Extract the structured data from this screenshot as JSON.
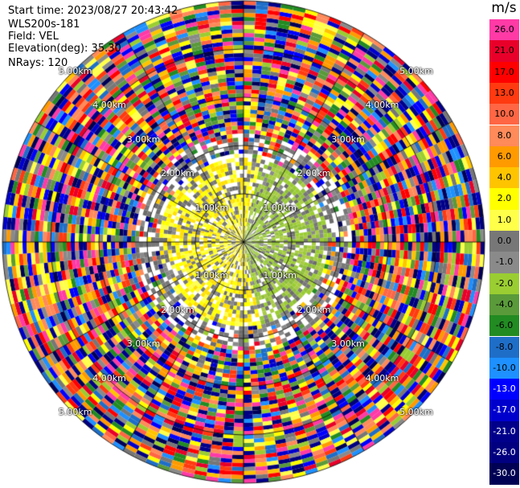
{
  "header": {
    "start_time": "Start time: 2023/08/27 20:43:42",
    "instrument": "WLS200s-181",
    "field": "Field: VEL",
    "elevation": "Elevation(deg): 35.30",
    "nrays": "NRays: 120"
  },
  "colorbar": {
    "unit": "m/s",
    "levels": [
      {
        "label": "26.0",
        "color": "#ff3aa6",
        "text": "#000000"
      },
      {
        "label": "21.0",
        "color": "#e8002a",
        "text": "#000000"
      },
      {
        "label": "17.0",
        "color": "#ff0000",
        "text": "#000000"
      },
      {
        "label": "13.0",
        "color": "#ff3a10",
        "text": "#000000"
      },
      {
        "label": "10.0",
        "color": "#ff6644",
        "text": "#000000"
      },
      {
        "label": "8.0",
        "color": "#ff8a5a",
        "text": "#000000"
      },
      {
        "label": "6.0",
        "color": "#ff9a00",
        "text": "#000000"
      },
      {
        "label": "4.0",
        "color": "#ffc400",
        "text": "#000000"
      },
      {
        "label": "2.0",
        "color": "#ffff00",
        "text": "#000000"
      },
      {
        "label": "1.0",
        "color": "#ffff4a",
        "text": "#000000"
      },
      {
        "label": "0.0",
        "color": "#777777",
        "text": "#000000"
      },
      {
        "label": "-1.0",
        "color": "#8a8a8a",
        "text": "#000000"
      },
      {
        "label": "-2.0",
        "color": "#9acd32",
        "text": "#000000"
      },
      {
        "label": "-4.0",
        "color": "#5a9a3a",
        "text": "#000000"
      },
      {
        "label": "-6.0",
        "color": "#228b22",
        "text": "#000000"
      },
      {
        "label": "-8.0",
        "color": "#1e6ec8",
        "text": "#000000"
      },
      {
        "label": "-10.0",
        "color": "#1e90ff",
        "text": "#000000"
      },
      {
        "label": "-13.0",
        "color": "#0000ff",
        "text": "#ffffff"
      },
      {
        "label": "-17.0",
        "color": "#0000cd",
        "text": "#ffffff"
      },
      {
        "label": "-21.0",
        "color": "#00008b",
        "text": "#ffffff"
      },
      {
        "label": "-26.0",
        "color": "#000080",
        "text": "#ffffff"
      },
      {
        "label": "-30.0",
        "color": "#000055",
        "text": "#ffffff"
      }
    ]
  },
  "range_ring_labels": [
    {
      "text": "1.00km",
      "ring": 1,
      "quadrant": "upper-left"
    },
    {
      "text": "1.00km",
      "ring": 1,
      "quadrant": "upper-right"
    },
    {
      "text": "1.00km",
      "ring": 1,
      "quadrant": "lower-left"
    },
    {
      "text": "1.00km",
      "ring": 1,
      "quadrant": "lower-right"
    },
    {
      "text": "2.00km",
      "ring": 2,
      "quadrant": "upper-left"
    },
    {
      "text": "2.00km",
      "ring": 2,
      "quadrant": "upper-right"
    },
    {
      "text": "2.00km",
      "ring": 2,
      "quadrant": "lower-left"
    },
    {
      "text": "2.00km",
      "ring": 2,
      "quadrant": "lower-right"
    },
    {
      "text": "3.00km",
      "ring": 3,
      "quadrant": "upper-left"
    },
    {
      "text": "3.00km",
      "ring": 3,
      "quadrant": "upper-right"
    },
    {
      "text": "3.00km",
      "ring": 3,
      "quadrant": "lower-left"
    },
    {
      "text": "3.00km",
      "ring": 3,
      "quadrant": "lower-right"
    },
    {
      "text": "4.00km",
      "ring": 4,
      "quadrant": "upper-left"
    },
    {
      "text": "4.00km",
      "ring": 4,
      "quadrant": "upper-right"
    },
    {
      "text": "4.00km",
      "ring": 4,
      "quadrant": "lower-left"
    },
    {
      "text": "4.00km",
      "ring": 4,
      "quadrant": "lower-right"
    },
    {
      "text": "5.00km",
      "ring": 5,
      "quadrant": "upper-left"
    },
    {
      "text": "5.00km",
      "ring": 5,
      "quadrant": "upper-right"
    },
    {
      "text": "5.00km",
      "ring": 5,
      "quadrant": "lower-left"
    },
    {
      "text": "5.00km",
      "ring": 5,
      "quadrant": "lower-right"
    }
  ],
  "chart_data": {
    "type": "heatmap",
    "projection": "polar PPI",
    "field": "VEL",
    "units": "m/s",
    "elevation_deg": 35.3,
    "nrays": 120,
    "range_rings_km": [
      1,
      2,
      3,
      4,
      5
    ],
    "max_range_km": 5.0,
    "near_field_pattern": "yellow (positive) and yellow-green (negative) velocities within about 1.5 km, noisy multicolor values beyond",
    "colorbar_range": [
      -30.0,
      26.0
    ]
  }
}
